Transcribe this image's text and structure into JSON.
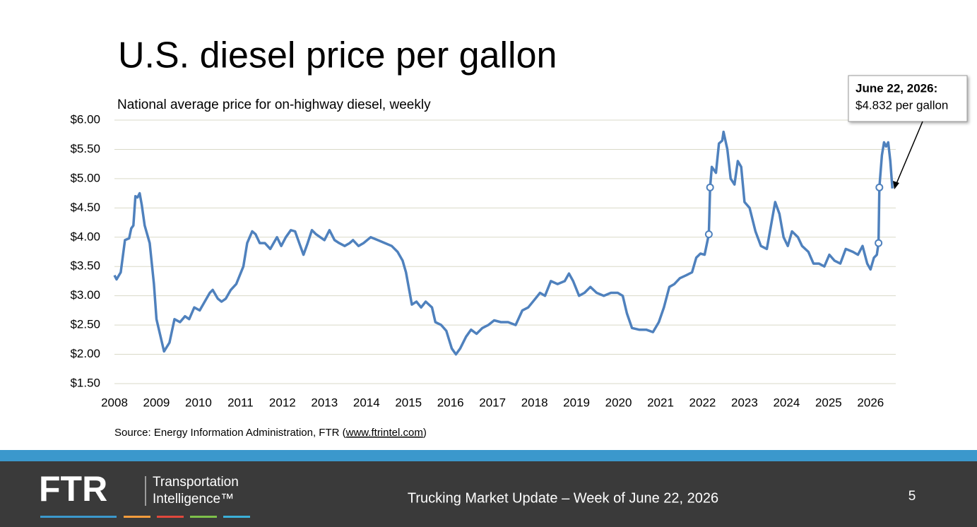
{
  "chart_data": {
    "type": "line",
    "title": "U.S. diesel price per gallon",
    "subtitle": "National average price for on-highway diesel, weekly",
    "annotation": {
      "heading": "June 22, 2026:",
      "text": "$4.832 per gallon"
    },
    "source": {
      "prefix": "Source: Energy Information Administration, FTR (",
      "link": "www.ftrintel.com",
      "suffix": ")"
    },
    "xlim": [
      2008,
      2026.6
    ],
    "xticks": [
      2008,
      2009,
      2010,
      2011,
      2012,
      2013,
      2014,
      2015,
      2016,
      2017,
      2018,
      2019,
      2020,
      2021,
      2022,
      2023,
      2024,
      2025,
      2026
    ],
    "ylim": [
      1.5,
      6.0
    ],
    "yticks": [
      {
        "value": 1.5,
        "label": "$1.50"
      },
      {
        "value": 2.0,
        "label": "$2.00"
      },
      {
        "value": 2.5,
        "label": "$2.50"
      },
      {
        "value": 3.0,
        "label": "$3.00"
      },
      {
        "value": 3.5,
        "label": "$3.50"
      },
      {
        "value": 4.0,
        "label": "$4.00"
      },
      {
        "value": 4.5,
        "label": "$4.50"
      },
      {
        "value": 5.0,
        "label": "$5.00"
      },
      {
        "value": 5.5,
        "label": "$5.50"
      },
      {
        "value": 6.0,
        "label": "$6.00"
      }
    ],
    "grid": true,
    "color": "#4f81bd",
    "x": [
      2008.0,
      2008.05,
      2008.15,
      2008.25,
      2008.35,
      2008.4,
      2008.45,
      2008.5,
      2008.55,
      2008.6,
      2008.65,
      2008.72,
      2008.84,
      2008.94,
      2009.0,
      2009.18,
      2009.31,
      2009.43,
      2009.56,
      2009.68,
      2009.78,
      2009.9,
      2010.03,
      2010.15,
      2010.27,
      2010.34,
      2010.46,
      2010.55,
      2010.65,
      2010.77,
      2010.9,
      2011.07,
      2011.16,
      2011.28,
      2011.36,
      2011.46,
      2011.58,
      2011.71,
      2011.87,
      2011.97,
      2012.08,
      2012.2,
      2012.3,
      2012.4,
      2012.5,
      2012.6,
      2012.7,
      2012.8,
      2012.9,
      2013.0,
      2013.12,
      2013.24,
      2013.35,
      2013.48,
      2013.6,
      2013.68,
      2013.81,
      2013.93,
      2014.1,
      2014.27,
      2014.44,
      2014.6,
      2014.74,
      2014.86,
      2014.94,
      2015.08,
      2015.19,
      2015.3,
      2015.41,
      2015.56,
      2015.64,
      2015.78,
      2015.9,
      2016.03,
      2016.13,
      2016.23,
      2016.37,
      2016.49,
      2016.62,
      2016.76,
      2016.9,
      2017.04,
      2017.2,
      2017.37,
      2017.55,
      2017.71,
      2017.85,
      2018.02,
      2018.13,
      2018.25,
      2018.39,
      2018.55,
      2018.72,
      2018.82,
      2018.92,
      2019.06,
      2019.19,
      2019.33,
      2019.48,
      2019.65,
      2019.82,
      2019.98,
      2020.1,
      2020.2,
      2020.32,
      2020.49,
      2020.66,
      2020.82,
      2020.96,
      2021.08,
      2021.21,
      2021.33,
      2021.46,
      2021.61,
      2021.75,
      2021.85,
      2021.95,
      2022.05,
      2022.15,
      2022.18,
      2022.22,
      2022.32,
      2022.39,
      2022.47,
      2022.5,
      2022.59,
      2022.67,
      2022.76,
      2022.84,
      2022.92,
      2023.0,
      2023.12,
      2023.26,
      2023.39,
      2023.53,
      2023.63,
      2023.73,
      2023.83,
      2023.93,
      2024.03,
      2024.13,
      2024.27,
      2024.37,
      2024.52,
      2024.64,
      2024.77,
      2024.9,
      2025.02,
      2025.14,
      2025.28,
      2025.41,
      2025.58,
      2025.7,
      2025.81,
      2025.92,
      2026.0,
      2026.08,
      2026.15,
      2026.19,
      2026.21,
      2026.27,
      2026.32,
      2026.37,
      2026.42,
      2026.47,
      2026.52
    ],
    "values": [
      3.35,
      3.28,
      3.4,
      3.95,
      3.98,
      4.15,
      4.2,
      4.7,
      4.68,
      4.75,
      4.55,
      4.2,
      3.9,
      3.2,
      2.6,
      2.05,
      2.2,
      2.6,
      2.55,
      2.65,
      2.6,
      2.8,
      2.75,
      2.9,
      3.05,
      3.1,
      2.95,
      2.9,
      2.95,
      3.1,
      3.2,
      3.5,
      3.9,
      4.1,
      4.05,
      3.9,
      3.9,
      3.8,
      4.0,
      3.85,
      4.0,
      4.12,
      4.1,
      3.9,
      3.7,
      3.9,
      4.12,
      4.05,
      4.0,
      3.95,
      4.12,
      3.95,
      3.9,
      3.85,
      3.9,
      3.95,
      3.85,
      3.9,
      4.0,
      3.95,
      3.9,
      3.85,
      3.75,
      3.6,
      3.4,
      2.85,
      2.9,
      2.8,
      2.9,
      2.8,
      2.55,
      2.5,
      2.4,
      2.1,
      2.0,
      2.1,
      2.3,
      2.42,
      2.35,
      2.45,
      2.5,
      2.58,
      2.55,
      2.55,
      2.5,
      2.75,
      2.8,
      2.95,
      3.05,
      3.0,
      3.25,
      3.2,
      3.25,
      3.38,
      3.25,
      3.0,
      3.05,
      3.15,
      3.05,
      3.0,
      3.05,
      3.05,
      3.0,
      2.7,
      2.45,
      2.42,
      2.42,
      2.38,
      2.55,
      2.8,
      3.15,
      3.2,
      3.3,
      3.35,
      3.4,
      3.65,
      3.72,
      3.7,
      4.05,
      4.85,
      5.2,
      5.1,
      5.6,
      5.65,
      5.8,
      5.5,
      5.0,
      4.9,
      5.3,
      5.2,
      4.6,
      4.5,
      4.1,
      3.85,
      3.8,
      4.2,
      4.6,
      4.4,
      4.0,
      3.85,
      4.1,
      4.0,
      3.85,
      3.75,
      3.55,
      3.55,
      3.5,
      3.7,
      3.6,
      3.55,
      3.8,
      3.75,
      3.7,
      3.85,
      3.55,
      3.45,
      3.65,
      3.7,
      3.9,
      4.85,
      5.4,
      5.62,
      5.55,
      5.62,
      5.3,
      4.832
    ],
    "markers": [
      {
        "x": 2022.15,
        "y": 4.05
      },
      {
        "x": 2022.18,
        "y": 4.85
      },
      {
        "x": 2026.19,
        "y": 3.9
      },
      {
        "x": 2026.21,
        "y": 4.85
      }
    ]
  },
  "footer": {
    "logo": "FTR",
    "brand_line1": "Transportation",
    "brand_line2": "Intelligence™",
    "center": "Trucking Market Update – Week of June 22, 2026",
    "page": "5"
  }
}
